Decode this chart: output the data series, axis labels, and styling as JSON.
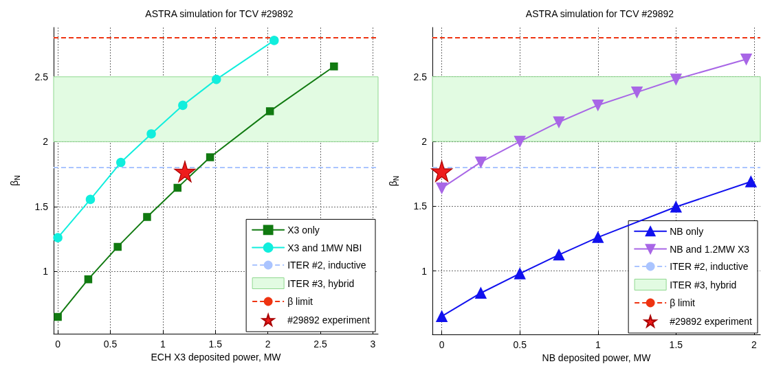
{
  "chart_data": [
    {
      "type": "line",
      "title": "ASTRA simulation for TCV #29892",
      "xlabel": "ECH X3 deposited power, MW",
      "ylabel": "β$_{N}$",
      "xlim": [
        -0.04,
        3.05
      ],
      "ylim": [
        0.52,
        2.88
      ],
      "xticks": [
        0,
        0.5,
        1,
        1.5,
        2,
        2.5,
        3
      ],
      "yticks": [
        1,
        1.5,
        2,
        2.5
      ],
      "grid": true,
      "legend": "bottom right",
      "series": [
        {
          "name": "X3 only",
          "color": "#117a11",
          "marker": "square",
          "x": [
            0,
            0.29,
            0.57,
            0.85,
            1.14,
            1.45,
            2.02,
            2.63
          ],
          "values": [
            0.65,
            0.94,
            1.19,
            1.42,
            1.645,
            1.88,
            2.235,
            2.58
          ]
        },
        {
          "name": "X3 and 1MW NBI",
          "color": "#11eedd",
          "marker": "circle",
          "x": [
            0,
            0.31,
            0.6,
            0.89,
            1.19,
            1.51,
            2.06
          ],
          "values": [
            1.26,
            1.555,
            1.84,
            2.06,
            2.28,
            2.48,
            2.78
          ]
        },
        {
          "name": "#29892 experiment",
          "type": "scatter",
          "color": "#ee1c1c",
          "marker": "star",
          "x": [
            1.21
          ],
          "values": [
            1.77
          ]
        }
      ],
      "ref_lines": [
        {
          "axis": "y",
          "value": 1.8,
          "label": "ITER #2, inductive",
          "color": "#aac4ff",
          "line_style": "dashed"
        },
        {
          "axis": "y",
          "value": 2.8,
          "label": "β limit",
          "color": "#ee3311",
          "line_style": "dashed"
        }
      ],
      "bands": [
        {
          "axis": "y",
          "from": 2,
          "to": 2.5,
          "label": "ITER #3, hybrid",
          "color": "#e2fbe2"
        }
      ]
    },
    {
      "type": "line",
      "title": "ASTRA simulation for TCV #29892",
      "xlabel": "NB deposited power, MW",
      "ylabel": "β$_{N}$",
      "xlim": [
        -0.06,
        2.04
      ],
      "ylim": [
        0.51,
        2.88
      ],
      "xticks": [
        0,
        0.5,
        1,
        1.5,
        2
      ],
      "yticks": [
        1,
        1.5,
        2,
        2.5
      ],
      "grid": true,
      "legend": "bottom right",
      "series": [
        {
          "name": "NB only",
          "color": "#1111ee",
          "marker": "triangle",
          "x": [
            0,
            0.25,
            0.5,
            0.75,
            1,
            1.5,
            1.98
          ],
          "values": [
            0.65,
            0.83,
            0.98,
            1.125,
            1.26,
            1.495,
            1.69
          ]
        },
        {
          "name": "NB and 1.2MW X3",
          "color": "#a866e6",
          "marker": "triangle-down",
          "x": [
            0,
            0.25,
            0.5,
            0.75,
            1,
            1.25,
            1.5,
            1.95
          ],
          "values": [
            1.64,
            1.84,
            2.0,
            2.15,
            2.28,
            2.38,
            2.48,
            2.635
          ]
        },
        {
          "name": "#29892 experiment",
          "type": "scatter",
          "color": "#ee1c1c",
          "marker": "star",
          "x": [
            0
          ],
          "values": [
            1.77
          ]
        }
      ],
      "ref_lines": [
        {
          "axis": "y",
          "value": 1.8,
          "label": "ITER #2, inductive",
          "color": "#aac4ff",
          "line_style": "dashed"
        },
        {
          "axis": "y",
          "value": 2.8,
          "label": "β limit",
          "color": "#ee3311",
          "line_style": "dashed"
        }
      ],
      "bands": [
        {
          "axis": "y",
          "from": 2,
          "to": 2.5,
          "label": "ITER #3, hybrid",
          "color": "#e2fbe2"
        }
      ]
    }
  ]
}
